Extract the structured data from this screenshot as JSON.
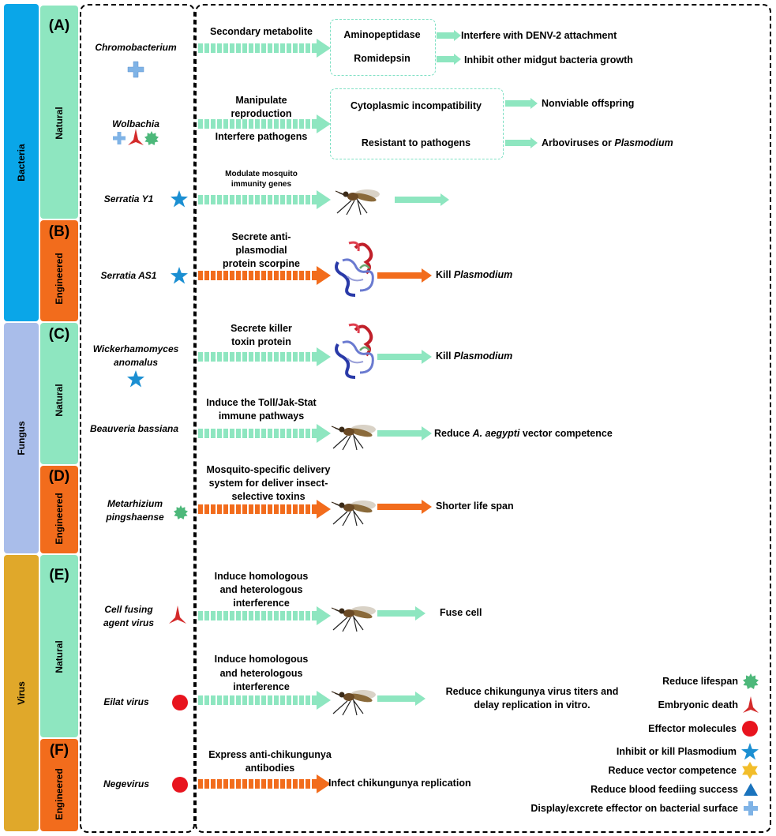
{
  "categories": [
    {
      "label": "Bacteria",
      "color": "#0aa6e8"
    },
    {
      "label": "Fungus",
      "color": "#a9bdea"
    },
    {
      "label": "Virus",
      "color": "#e0a82a"
    }
  ],
  "types": {
    "natural": "Natural",
    "engineered": "Engineered",
    "natural_color": "#8ee6c0",
    "engineered_color": "#f26c1c"
  },
  "panels": [
    "(A)",
    "(B)",
    "(C)",
    "(D)",
    "(E)",
    "(F)"
  ],
  "rows": [
    {
      "organism": "Chromobacterium",
      "mechanism": "Secondary metabolite",
      "box_items": [
        "Aminopeptidase",
        "Romidepsin"
      ],
      "outcomes": [
        "Interfere with DENV-2 attachment",
        "Inhibit other midgut bacteria growth"
      ],
      "icons": [
        "cross-icon"
      ]
    },
    {
      "organism": "Wolbachia",
      "mechanism_lines": [
        "Manipulate",
        "reproduction",
        "Interfere pathogens"
      ],
      "box_items": [
        "Cytoplasmic incompatibility",
        "Resistant to pathogens"
      ],
      "outcomes": [
        "Nonviable offspring",
        "Arboviruses or "
      ],
      "outcome_italic": "Plasmodium",
      "icons": [
        "cross-icon",
        "red-tripod-icon",
        "green-star-icon"
      ]
    },
    {
      "organism": "Serratia Y1",
      "mechanism_lines": [
        "Modulate mosquito",
        "immunity genes"
      ],
      "icons": [
        "blue-star-icon"
      ]
    },
    {
      "organism": "Serratia AS1",
      "mechanism_lines": [
        "Secrete anti-",
        "plasmodial",
        "protein scorpine"
      ],
      "outcome": "Kill ",
      "outcome_italic": "Plasmodium",
      "icons": [
        "blue-star-icon"
      ]
    },
    {
      "organism_lines": [
        "Wickerhamomyces",
        "anomalus"
      ],
      "mechanism_lines": [
        "Secrete killer",
        "toxin protein"
      ],
      "outcome": "Kill ",
      "outcome_italic": "Plasmodium",
      "icons": [
        "blue-star-icon"
      ]
    },
    {
      "organism": "Beauveria bassiana",
      "mechanism_lines": [
        "Induce the Toll/Jak-Stat",
        "immune pathways"
      ],
      "outcome_pre": "Reduce ",
      "outcome_italic": "A. aegypti",
      "outcome_post": " vector competence"
    },
    {
      "organism_lines": [
        "Metarhizium",
        "pingshaense"
      ],
      "mechanism_lines": [
        "Mosquito-specific delivery",
        "system for deliver insect-",
        "selective toxins"
      ],
      "outcome": "Shorter life span",
      "icons": [
        "green-star-icon"
      ]
    },
    {
      "organism_lines": [
        "Cell fusing",
        "agent virus"
      ],
      "mechanism_lines": [
        "Induce homologous",
        "and heterologous",
        "interference"
      ],
      "outcome": "Fuse cell",
      "icons": [
        "red-tripod-icon"
      ]
    },
    {
      "organism": "Eilat virus",
      "mechanism_lines": [
        "Induce homologous",
        "and heterologous",
        "interference"
      ],
      "outcome_lines": [
        "Reduce chikungunya virus titers and",
        "delay replication in vitro."
      ],
      "icons": [
        "red-circle-icon"
      ]
    },
    {
      "organism": "Negevirus",
      "mechanism_lines": [
        "Express anti-chikungunya",
        "antibodies"
      ],
      "outcome": "Infect chikungunya replication",
      "icons": [
        "red-circle-icon"
      ]
    }
  ],
  "legend": [
    {
      "label": "Reduce lifespan",
      "icon": "green-star-icon"
    },
    {
      "label": "Embryonic death",
      "icon": "red-tripod-icon"
    },
    {
      "label": "Effector molecules",
      "icon": "red-circle-icon"
    },
    {
      "label": "Inhibit or kill Plasmodium",
      "icon": "blue-star-icon"
    },
    {
      "label": "Reduce vector competence",
      "icon": "yellow-star-icon"
    },
    {
      "label": "Reduce blood feediing success",
      "icon": "blue-triangle-icon"
    },
    {
      "label": "Display/excrete effector on bacterial surface",
      "icon": "cross-icon"
    }
  ],
  "colors": {
    "natural_arrow": "#8ee6c0",
    "engineered_arrow": "#f26c1c"
  }
}
